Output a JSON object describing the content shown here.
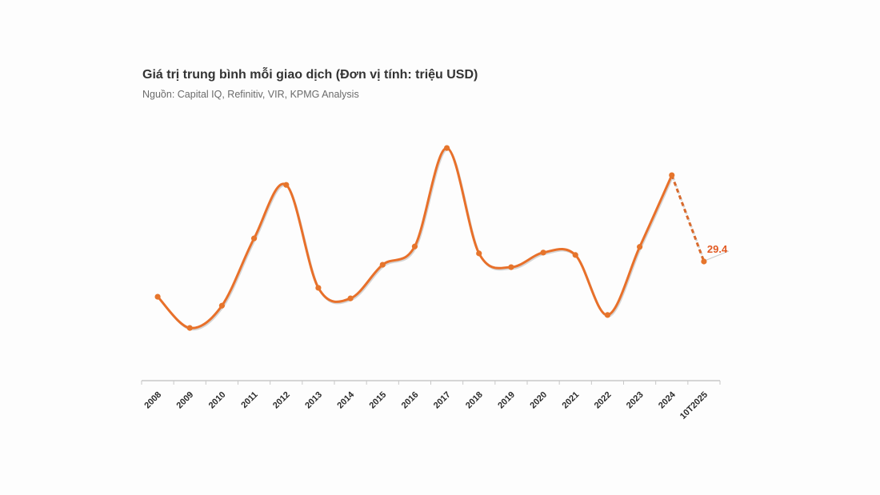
{
  "header": {
    "title": "Giá trị trung bình mỗi giao dịch (Đơn vị tính: triệu USD)",
    "source": "Nguồn: Capital IQ, Refinitiv, VIR, KPMG Analysis"
  },
  "chart_data": {
    "type": "line",
    "title": "Giá trị trung bình mỗi giao dịch (Đơn vị tính: triệu USD)",
    "subtitle": "Nguồn: Capital IQ, Refinitiv, VIR, KPMG Analysis",
    "categories": [
      "2008",
      "2009",
      "2010",
      "2011",
      "2012",
      "2013",
      "2014",
      "2015",
      "2016",
      "2017",
      "2018",
      "2019",
      "2020",
      "2021",
      "2022",
      "2023",
      "2024",
      "10T2025"
    ],
    "series": [
      {
        "name": "Giá trị trung bình mỗi giao dịch (triệu USD)",
        "values": [
          20.7,
          13.0,
          18.5,
          35.1,
          48.3,
          22.9,
          20.3,
          28.6,
          33.1,
          57.4,
          31.4,
          28.0,
          31.6,
          31.0,
          16.2,
          33.0,
          50.7,
          29.4
        ]
      }
    ],
    "last_point_label": "29.4",
    "dashed_segment": {
      "from": "2024",
      "to": "10T2025",
      "style": "dashed-forecast"
    },
    "xlabel": "",
    "ylabel": "triệu USD",
    "ylim": [
      0,
      62
    ],
    "grid": false,
    "legend": "none",
    "y_axis_visible": false,
    "colors": {
      "line": "#e8702a",
      "marker": "#e6752c",
      "dashed_line": "#d96a2c",
      "shadow": "#8a8a8a",
      "last_label": "#e25a22",
      "leader_line": "#cccccc",
      "axis": "#c8c8c8",
      "tick_label": "#2b2b2b",
      "title": "#333333",
      "subtitle": "#6b6b6b"
    }
  }
}
